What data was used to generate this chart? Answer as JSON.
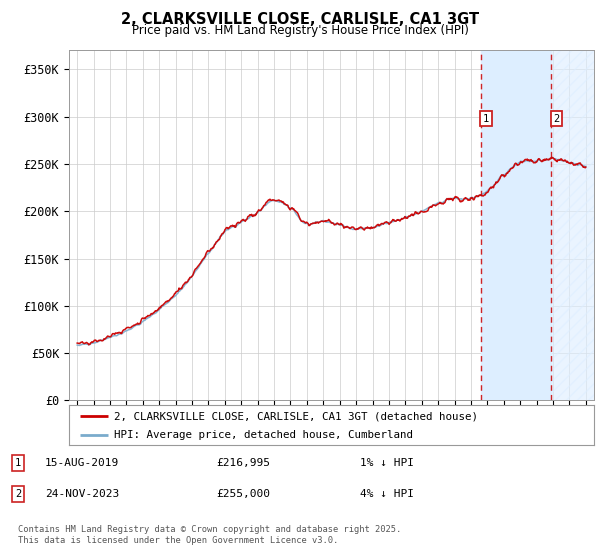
{
  "title": "2, CLARKSVILLE CLOSE, CARLISLE, CA1 3GT",
  "subtitle": "Price paid vs. HM Land Registry's House Price Index (HPI)",
  "ylabel_ticks": [
    "£0",
    "£50K",
    "£100K",
    "£150K",
    "£200K",
    "£250K",
    "£300K",
    "£350K"
  ],
  "ytick_values": [
    0,
    50000,
    100000,
    150000,
    200000,
    250000,
    300000,
    350000
  ],
  "ylim": [
    0,
    370000
  ],
  "xmin": 1994.5,
  "xmax": 2026.5,
  "sale1_date": "15-AUG-2019",
  "sale1_price": 216995,
  "sale1_label": "1% ↓ HPI",
  "sale1_x": 2019.62,
  "sale2_date": "24-NOV-2023",
  "sale2_price": 255000,
  "sale2_label": "4% ↓ HPI",
  "sale2_x": 2023.9,
  "legend_line1": "2, CLARKSVILLE CLOSE, CARLISLE, CA1 3GT (detached house)",
  "legend_line2": "HPI: Average price, detached house, Cumberland",
  "footnote": "Contains HM Land Registry data © Crown copyright and database right 2025.\nThis data is licensed under the Open Government Licence v3.0.",
  "line_color_red": "#cc0000",
  "line_color_blue": "#7aabcc",
  "shade_color": "#ddeeff",
  "background_color": "#ffffff",
  "grid_color": "#cccccc",
  "hpi_keypoints_x": [
    1995,
    1996,
    1997,
    1998,
    1999,
    2000,
    2001,
    2002,
    2003,
    2004,
    2005,
    2006,
    2007,
    2008,
    2009,
    2010,
    2011,
    2012,
    2013,
    2014,
    2015,
    2016,
    2017,
    2018,
    2019,
    2020,
    2021,
    2022,
    2023,
    2024,
    2025,
    2026
  ],
  "hpi_keypoints_y": [
    65000,
    68000,
    73000,
    80000,
    90000,
    103000,
    118000,
    138000,
    162000,
    185000,
    195000,
    205000,
    218000,
    210000,
    193000,
    196000,
    192000,
    188000,
    190000,
    195000,
    200000,
    207000,
    215000,
    220000,
    220000,
    228000,
    245000,
    258000,
    260000,
    262000,
    258000,
    255000
  ]
}
